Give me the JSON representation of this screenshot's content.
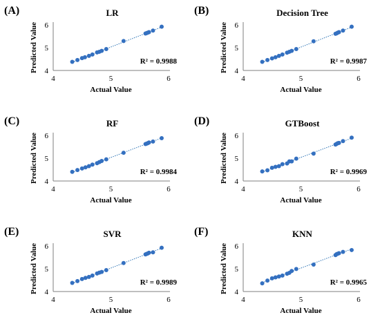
{
  "chart_data": [
    {
      "type": "scatter",
      "panel": "(A)",
      "title": "LR",
      "xlabel": "Actual Value",
      "ylabel": "Predicted Value",
      "r2_text": "R² = 0.9988",
      "xlim": [
        4,
        6
      ],
      "ylim": [
        4,
        6
      ],
      "xticks": [
        "4",
        "5",
        "6"
      ],
      "yticks": [
        "4",
        "5",
        "6"
      ],
      "trendline": true,
      "points": [
        {
          "x": 4.33,
          "y": 4.38
        },
        {
          "x": 4.42,
          "y": 4.46
        },
        {
          "x": 4.5,
          "y": 4.54
        },
        {
          "x": 4.55,
          "y": 4.58
        },
        {
          "x": 4.62,
          "y": 4.64
        },
        {
          "x": 4.68,
          "y": 4.7
        },
        {
          "x": 4.76,
          "y": 4.79
        },
        {
          "x": 4.8,
          "y": 4.82
        },
        {
          "x": 4.84,
          "y": 4.86
        },
        {
          "x": 4.92,
          "y": 4.94
        },
        {
          "x": 5.22,
          "y": 5.29
        },
        {
          "x": 5.6,
          "y": 5.62
        },
        {
          "x": 5.62,
          "y": 5.64
        },
        {
          "x": 5.64,
          "y": 5.66
        },
        {
          "x": 5.66,
          "y": 5.68
        },
        {
          "x": 5.73,
          "y": 5.75
        },
        {
          "x": 5.88,
          "y": 5.92
        }
      ]
    },
    {
      "type": "scatter",
      "panel": "(B)",
      "title": "Decision Tree",
      "xlabel": "Actual Value",
      "ylabel": "Predicted Value",
      "r2_text": "R² = 0.9987",
      "xlim": [
        4,
        6
      ],
      "ylim": [
        4,
        6
      ],
      "xticks": [
        "4",
        "5",
        "6"
      ],
      "yticks": [
        "4",
        "5",
        "6"
      ],
      "trendline": true,
      "points": [
        {
          "x": 4.33,
          "y": 4.38
        },
        {
          "x": 4.42,
          "y": 4.46
        },
        {
          "x": 4.5,
          "y": 4.53
        },
        {
          "x": 4.56,
          "y": 4.58
        },
        {
          "x": 4.62,
          "y": 4.64
        },
        {
          "x": 4.68,
          "y": 4.7
        },
        {
          "x": 4.76,
          "y": 4.78
        },
        {
          "x": 4.8,
          "y": 4.82
        },
        {
          "x": 4.84,
          "y": 4.86
        },
        {
          "x": 4.92,
          "y": 4.94
        },
        {
          "x": 5.22,
          "y": 5.28
        },
        {
          "x": 5.6,
          "y": 5.61
        },
        {
          "x": 5.62,
          "y": 5.63
        },
        {
          "x": 5.64,
          "y": 5.66
        },
        {
          "x": 5.66,
          "y": 5.68
        },
        {
          "x": 5.73,
          "y": 5.75
        },
        {
          "x": 5.88,
          "y": 5.92
        }
      ]
    },
    {
      "type": "scatter",
      "panel": "(C)",
      "title": "RF",
      "xlabel": "Actual Value",
      "ylabel": "Predicted Value",
      "r2_text": "R² = 0.9984",
      "xlim": [
        4,
        6
      ],
      "ylim": [
        4,
        6
      ],
      "xticks": [
        "4",
        "5",
        "6"
      ],
      "yticks": [
        "4",
        "5",
        "6"
      ],
      "trendline": true,
      "points": [
        {
          "x": 4.33,
          "y": 4.4
        },
        {
          "x": 4.42,
          "y": 4.48
        },
        {
          "x": 4.5,
          "y": 4.55
        },
        {
          "x": 4.56,
          "y": 4.6
        },
        {
          "x": 4.62,
          "y": 4.65
        },
        {
          "x": 4.68,
          "y": 4.72
        },
        {
          "x": 4.76,
          "y": 4.78
        },
        {
          "x": 4.8,
          "y": 4.83
        },
        {
          "x": 4.84,
          "y": 4.88
        },
        {
          "x": 4.92,
          "y": 4.95
        },
        {
          "x": 5.22,
          "y": 5.24
        },
        {
          "x": 5.6,
          "y": 5.62
        },
        {
          "x": 5.62,
          "y": 5.64
        },
        {
          "x": 5.64,
          "y": 5.66
        },
        {
          "x": 5.66,
          "y": 5.69
        },
        {
          "x": 5.73,
          "y": 5.73
        },
        {
          "x": 5.88,
          "y": 5.88
        }
      ]
    },
    {
      "type": "scatter",
      "panel": "(D)",
      "title": "GTBoost",
      "xlabel": "Actual Value",
      "ylabel": "Predicted Value",
      "r2_text": "R² = 0.9969",
      "xlim": [
        4,
        6
      ],
      "ylim": [
        4,
        6
      ],
      "xticks": [
        "4",
        "5",
        "6"
      ],
      "yticks": [
        "4",
        "5",
        "6"
      ],
      "trendline": true,
      "points": [
        {
          "x": 4.33,
          "y": 4.42
        },
        {
          "x": 4.42,
          "y": 4.47
        },
        {
          "x": 4.5,
          "y": 4.58
        },
        {
          "x": 4.56,
          "y": 4.62
        },
        {
          "x": 4.62,
          "y": 4.65
        },
        {
          "x": 4.68,
          "y": 4.74
        },
        {
          "x": 4.76,
          "y": 4.77
        },
        {
          "x": 4.8,
          "y": 4.86
        },
        {
          "x": 4.84,
          "y": 4.86
        },
        {
          "x": 4.92,
          "y": 4.98
        },
        {
          "x": 5.22,
          "y": 5.2
        },
        {
          "x": 5.6,
          "y": 5.6
        },
        {
          "x": 5.62,
          "y": 5.63
        },
        {
          "x": 5.64,
          "y": 5.66
        },
        {
          "x": 5.66,
          "y": 5.67
        },
        {
          "x": 5.73,
          "y": 5.75
        },
        {
          "x": 5.88,
          "y": 5.9
        }
      ]
    },
    {
      "type": "scatter",
      "panel": "(E)",
      "title": "SVR",
      "xlabel": "Actual Value",
      "ylabel": "Predicted Value",
      "r2_text": "R² = 0.9989",
      "xlim": [
        4,
        6
      ],
      "ylim": [
        4,
        6
      ],
      "xticks": [
        "4",
        "5",
        "6"
      ],
      "yticks": [
        "4",
        "5",
        "6"
      ],
      "trendline": true,
      "points": [
        {
          "x": 4.33,
          "y": 4.38
        },
        {
          "x": 4.42,
          "y": 4.46
        },
        {
          "x": 4.5,
          "y": 4.55
        },
        {
          "x": 4.56,
          "y": 4.6
        },
        {
          "x": 4.62,
          "y": 4.64
        },
        {
          "x": 4.68,
          "y": 4.7
        },
        {
          "x": 4.76,
          "y": 4.79
        },
        {
          "x": 4.8,
          "y": 4.83
        },
        {
          "x": 4.84,
          "y": 4.86
        },
        {
          "x": 4.92,
          "y": 4.94
        },
        {
          "x": 5.22,
          "y": 5.25
        },
        {
          "x": 5.6,
          "y": 5.63
        },
        {
          "x": 5.62,
          "y": 5.65
        },
        {
          "x": 5.64,
          "y": 5.67
        },
        {
          "x": 5.66,
          "y": 5.7
        },
        {
          "x": 5.73,
          "y": 5.72
        },
        {
          "x": 5.88,
          "y": 5.92
        }
      ]
    },
    {
      "type": "scatter",
      "panel": "(F)",
      "title": "KNN",
      "xlabel": "Actual Value",
      "ylabel": "Predicted Value",
      "r2_text": "R² = 0.9965",
      "xlim": [
        4,
        6
      ],
      "ylim": [
        4,
        6
      ],
      "xticks": [
        "4",
        "5",
        "6"
      ],
      "yticks": [
        "4",
        "5",
        "6"
      ],
      "trendline": true,
      "points": [
        {
          "x": 4.33,
          "y": 4.36
        },
        {
          "x": 4.42,
          "y": 4.48
        },
        {
          "x": 4.5,
          "y": 4.58
        },
        {
          "x": 4.56,
          "y": 4.62
        },
        {
          "x": 4.62,
          "y": 4.66
        },
        {
          "x": 4.68,
          "y": 4.7
        },
        {
          "x": 4.76,
          "y": 4.78
        },
        {
          "x": 4.8,
          "y": 4.82
        },
        {
          "x": 4.84,
          "y": 4.9
        },
        {
          "x": 4.92,
          "y": 4.99
        },
        {
          "x": 5.22,
          "y": 5.18
        },
        {
          "x": 5.6,
          "y": 5.6
        },
        {
          "x": 5.62,
          "y": 5.64
        },
        {
          "x": 5.64,
          "y": 5.66
        },
        {
          "x": 5.66,
          "y": 5.68
        },
        {
          "x": 5.73,
          "y": 5.74
        },
        {
          "x": 5.88,
          "y": 5.82
        }
      ]
    }
  ]
}
